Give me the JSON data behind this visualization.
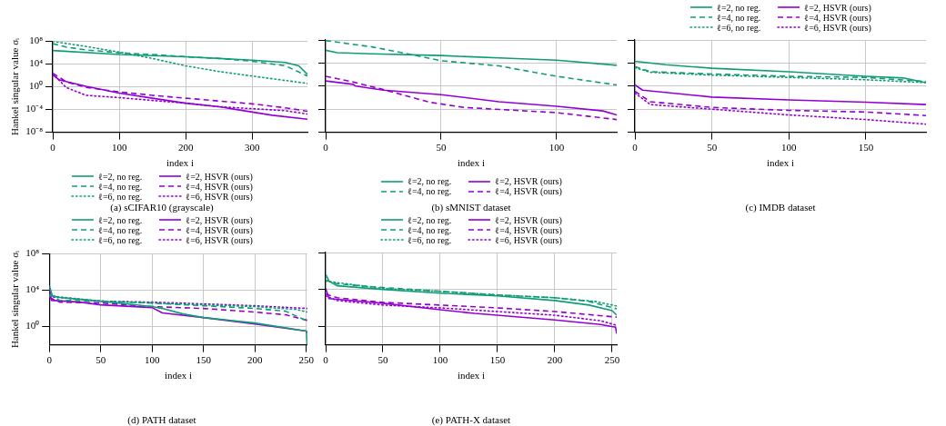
{
  "chart_data": [
    {
      "type": "line",
      "title": "(a) sCIFAR10 (grayscale)",
      "xlabel": "index i",
      "ylabel": "Hankel singular value σᵢ",
      "log": "y",
      "grid": true,
      "legend": "bottom",
      "xlim": [
        0,
        383
      ],
      "xticks": [
        0,
        100,
        200,
        300
      ],
      "ylim": [
        1e-08,
        100000000.0
      ],
      "yticks": [
        {
          "value": 100000000.0,
          "label": "10⁸"
        },
        {
          "value": 10000.0,
          "label": "10⁴"
        },
        {
          "value": 1,
          "label": "10⁰"
        },
        {
          "value": 0.0001,
          "label": "10⁻⁴"
        },
        {
          "value": 1e-08,
          "label": "10⁻⁸"
        }
      ],
      "series": [
        {
          "name": "ℓ=2, no reg.",
          "color": "#0f9d76",
          "line_style": "solid",
          "x": [
            0,
            100,
            200,
            300,
            350,
            370,
            383
          ],
          "values": [
            2500000.0,
            500000.0,
            200000.0,
            50000.0,
            20000.0,
            5000.0,
            160
          ]
        },
        {
          "name": "ℓ=4, no reg.",
          "color": "#0f9d76",
          "line_style": "dashed",
          "x": [
            0,
            20,
            50,
            100,
            150,
            200,
            250,
            300,
            350,
            383
          ],
          "values": [
            40000000.0,
            10000000.0,
            3200000.0,
            1000000.0,
            500000.0,
            200000.0,
            100000.0,
            32000.0,
            5000.0,
            79
          ]
        },
        {
          "name": "ℓ=6, no reg.",
          "color": "#0f9d76",
          "line_style": "dotted",
          "x": [
            0,
            50,
            100,
            150,
            200,
            250,
            300,
            383
          ],
          "values": [
            100000000.0,
            13000000.0,
            1300000.0,
            100000.0,
            5000.0,
            500,
            79,
            4
          ]
        },
        {
          "name": "ℓ=2, HSVR (ours)",
          "color": "#9400d3",
          "line_style": "solid",
          "x": [
            0,
            10,
            50,
            100,
            150,
            200,
            250,
            330,
            383
          ],
          "values": [
            126,
            16,
            1.26,
            0.079,
            0.01,
            0.0013,
            0.00032,
            1e-05,
            2e-06
          ]
        },
        {
          "name": "ℓ=4, HSVR (ours)",
          "color": "#9400d3",
          "line_style": "dashed",
          "x": [
            0,
            20,
            50,
            100,
            150,
            200,
            250,
            300,
            350,
            383
          ],
          "values": [
            250,
            7.9,
            0.79,
            0.126,
            0.032,
            0.01,
            0.0032,
            0.001,
            0.0002,
            5e-05
          ]
        },
        {
          "name": "ℓ=6, HSVR (ours)",
          "color": "#9400d3",
          "line_style": "dotted",
          "x": [
            0,
            20,
            50,
            100,
            150,
            200,
            250,
            350,
            383
          ],
          "values": [
            200,
            0.79,
            0.032,
            0.0126,
            0.004,
            0.0013,
            0.00032,
            6.3e-05,
            1.6e-05
          ]
        }
      ]
    },
    {
      "type": "line",
      "title": "(b) sMNIST dataset",
      "xlabel": "index i",
      "log": "y",
      "grid": true,
      "legend": "bottom",
      "tick_labels": "x",
      "xlim": [
        0,
        126
      ],
      "xticks": [
        0,
        50,
        100
      ],
      "ylim": [
        1e-08,
        100000000.0
      ],
      "yticks": [
        {
          "value": 100000000.0,
          "label": null
        },
        {
          "value": 10000.0,
          "label": null
        },
        {
          "value": 1,
          "label": null
        },
        {
          "value": 0.0001,
          "label": null
        },
        {
          "value": 1e-08,
          "label": null
        }
      ],
      "series": [
        {
          "name": "ℓ=2, no reg.",
          "color": "#0f9d76",
          "line_style": "solid",
          "x": [
            0,
            5,
            20,
            50,
            80,
            100,
            126
          ],
          "values": [
            1600000.0,
            630000.0,
            400000.0,
            200000.0,
            63000.0,
            32000.0,
            4000.0
          ]
        },
        {
          "name": "ℓ=4, no reg.",
          "color": "#0f9d76",
          "line_style": "dashed",
          "x": [
            0,
            20,
            33,
            50,
            75,
            100,
            126
          ],
          "values": [
            79000000.0,
            6300000.0,
            630000.0,
            25000.0,
            3200.0,
            50,
            1.6
          ]
        },
        {
          "name": "ℓ=2, HSVR (ours)",
          "color": "#9400d3",
          "line_style": "solid",
          "x": [
            0,
            12,
            13,
            25,
            50,
            75,
            100,
            120,
            126
          ],
          "values": [
            7.9,
            2,
            1,
            0.2,
            0.032,
            0.002,
            0.00032,
            5e-05,
            1e-05
          ]
        },
        {
          "name": "ℓ=4, HSVR (ours)",
          "color": "#9400d3",
          "line_style": "dashed",
          "x": [
            0,
            12,
            25,
            45,
            60,
            100,
            126
          ],
          "values": [
            50,
            5,
            0.25,
            0.0016,
            0.0002,
            2.5e-05,
            1.6e-06
          ]
        }
      ]
    },
    {
      "type": "line",
      "title": "(c) IMDB dataset",
      "xlabel": "index i",
      "log": "y",
      "grid": true,
      "legend": "top",
      "tick_labels": "x",
      "xlim": [
        0,
        189
      ],
      "xticks": [
        0,
        50,
        100,
        150
      ],
      "ylim": [
        1e-08,
        100000000.0
      ],
      "yticks": [
        {
          "value": 100000000.0,
          "label": null
        },
        {
          "value": 10000.0,
          "label": null
        },
        {
          "value": 1,
          "label": null
        },
        {
          "value": 0.0001,
          "label": null
        },
        {
          "value": 1e-08,
          "label": null
        }
      ],
      "series": [
        {
          "name": "ℓ=2, no reg.",
          "color": "#0f9d76",
          "line_style": "solid",
          "x": [
            0,
            20,
            50,
            100,
            150,
            175,
            189
          ],
          "values": [
            20000.0,
            5000.0,
            1260,
            316,
            50,
            25,
            4
          ]
        },
        {
          "name": "ℓ=4, no reg.",
          "color": "#0f9d76",
          "line_style": "dashed",
          "x": [
            0,
            10,
            50,
            100,
            150,
            189
          ],
          "values": [
            2500,
            316,
            126,
            50,
            32,
            6.3
          ]
        },
        {
          "name": "ℓ=6, no reg.",
          "color": "#0f9d76",
          "line_style": "dotted",
          "x": [
            0,
            10,
            50,
            100,
            150,
            189
          ],
          "values": [
            1600,
            250,
            79,
            32,
            12.6,
            4
          ]
        },
        {
          "name": "ℓ=2, HSVR (ours)",
          "color": "#9400d3",
          "line_style": "solid",
          "x": [
            0,
            5,
            50,
            100,
            150,
            189
          ],
          "values": [
            1.6,
            0.2,
            0.0126,
            0.004,
            0.0016,
            0.00063
          ]
        },
        {
          "name": "ℓ=4, HSVR (ours)",
          "color": "#9400d3",
          "line_style": "dashed",
          "x": [
            0,
            10,
            50,
            100,
            150,
            189
          ],
          "values": [
            0.126,
            0.002,
            0.0002,
            6.3e-05,
            3.2e-05,
            7.9e-06
          ]
        },
        {
          "name": "ℓ=6, HSVR (ours)",
          "color": "#9400d3",
          "line_style": "dotted",
          "x": [
            0,
            10,
            50,
            100,
            150,
            189
          ],
          "values": [
            0.063,
            0.00063,
            0.0001,
            1e-05,
            1.6e-06,
            2.5e-07
          ]
        }
      ]
    },
    {
      "type": "line",
      "title": "(d) PATH dataset",
      "xlabel": "index i",
      "ylabel": "Hankel singular value σᵢ",
      "log": "y",
      "grid": true,
      "legend": "top",
      "xlim": [
        0,
        251
      ],
      "xticks": [
        0,
        50,
        100,
        150,
        200,
        250
      ],
      "ylim": [
        0.01,
        100000000.0
      ],
      "yticks": [
        {
          "value": 100000000.0,
          "label": "10⁸"
        },
        {
          "value": 10000.0,
          "label": "10⁴"
        },
        {
          "value": 1,
          "label": "10⁰"
        }
      ],
      "series": [
        {
          "name": "ℓ=2, no reg.",
          "color": "#0f9d76",
          "line_style": "solid",
          "x": [
            0,
            3,
            10,
            50,
            100,
            110,
            130,
            150,
            200,
            250,
            251
          ],
          "values": [
            32000.0,
            2500,
            1600,
            630,
            160,
            100,
            25,
            10,
            2.5,
            0.32,
            0.01
          ]
        },
        {
          "name": "ℓ=4, no reg.",
          "color": "#0f9d76",
          "line_style": "dashed",
          "x": [
            0,
            10,
            50,
            100,
            150,
            200,
            230,
            251
          ],
          "values": [
            4000,
            790,
            630,
            400,
            200,
            100,
            50,
            4
          ]
        },
        {
          "name": "ℓ=6, no reg.",
          "color": "#0f9d76",
          "line_style": "dotted",
          "x": [
            0,
            50,
            100,
            150,
            200,
            240,
            251
          ],
          "values": [
            2500,
            630,
            400,
            250,
            160,
            79,
            40
          ]
        },
        {
          "name": "ℓ=2, HSVR (ours)",
          "color": "#9400d3",
          "line_style": "solid",
          "x": [
            0,
            2,
            30,
            50,
            100,
            110,
            150,
            200,
            250,
            251
          ],
          "values": [
            20000.0,
            790,
            500,
            250,
            126,
            32,
            10,
            2,
            0.32,
            0.2
          ]
        },
        {
          "name": "ℓ=4, HSVR (ours)",
          "color": "#9400d3",
          "line_style": "dashed",
          "x": [
            0,
            10,
            50,
            100,
            150,
            200,
            230,
            251
          ],
          "values": [
            1600,
            500,
            400,
            160,
            100,
            40,
            20,
            5
          ]
        },
        {
          "name": "ℓ=6, HSVR (ours)",
          "color": "#9400d3",
          "line_style": "dotted",
          "x": [
            0,
            50,
            100,
            150,
            200,
            251
          ],
          "values": [
            2000,
            630,
            500,
            320,
            200,
            100
          ]
        }
      ]
    },
    {
      "type": "line",
      "title": "(e) PATH-X dataset",
      "xlabel": "index i",
      "log": "y",
      "grid": true,
      "legend": "top",
      "tick_labels": "x",
      "xlim": [
        0,
        254
      ],
      "xticks": [
        0,
        50,
        100,
        150,
        200,
        250
      ],
      "ylim": [
        0.01,
        100000000.0
      ],
      "yticks": [
        {
          "value": 100000000.0,
          "label": null
        },
        {
          "value": 10000.0,
          "label": null
        },
        {
          "value": 1,
          "label": null
        }
      ],
      "series": [
        {
          "name": "ℓ=2, no reg.",
          "color": "#0f9d76",
          "line_style": "solid",
          "x": [
            0,
            3,
            10,
            50,
            100,
            150,
            200,
            230,
            250,
            254
          ],
          "values": [
            450000.0,
            79000.0,
            25000.0,
            10000.0,
            4000,
            2000,
            630,
            200,
            50,
            16
          ]
        },
        {
          "name": "ℓ=4, no reg.",
          "color": "#0f9d76",
          "line_style": "dashed",
          "x": [
            0,
            10,
            50,
            100,
            150,
            200,
            230,
            254
          ],
          "values": [
            100000.0,
            40000.0,
            16000.0,
            6300,
            2500,
            1260,
            500,
            79
          ]
        },
        {
          "name": "ℓ=6, no reg.",
          "color": "#0f9d76",
          "line_style": "dotted",
          "x": [
            0,
            50,
            100,
            150,
            200,
            235,
            254
          ],
          "values": [
            79000.0,
            12600.0,
            6300,
            2500,
            1260,
            500,
            160
          ]
        },
        {
          "name": "ℓ=2, HSVR (ours)",
          "color": "#9400d3",
          "line_style": "solid",
          "x": [
            0,
            3,
            50,
            100,
            130,
            200,
            240,
            253,
            254
          ],
          "values": [
            12600.0,
            1000,
            316,
            63,
            25,
            5,
            1.6,
            0.79,
            0.16
          ]
        },
        {
          "name": "ℓ=4, HSVR (ours)",
          "color": "#9400d3",
          "line_style": "dashed",
          "x": [
            0,
            10,
            50,
            100,
            150,
            200,
            254
          ],
          "values": [
            3200,
            1260,
            400,
            200,
            100,
            40,
            10
          ]
        },
        {
          "name": "ℓ=6, HSVR (ours)",
          "color": "#9400d3",
          "line_style": "dotted",
          "x": [
            0,
            10,
            50,
            100,
            150,
            200,
            240,
            254
          ],
          "values": [
            2000,
            630,
            200,
            100,
            40,
            16,
            4,
            1.26
          ]
        }
      ]
    }
  ]
}
